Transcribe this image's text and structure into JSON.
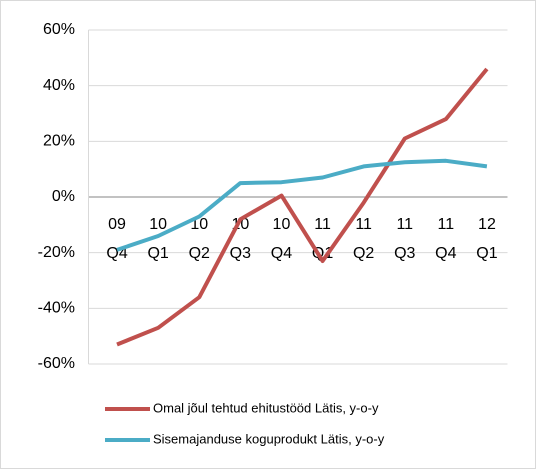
{
  "chart_data": {
    "type": "line",
    "categories": [
      "09\nQ4",
      "10\nQ1",
      "10\nQ2",
      "10\nQ3",
      "10\nQ4",
      "11\nQ1",
      "11\nQ2",
      "11\nQ3",
      "11\nQ4",
      "12\nQ1"
    ],
    "series": [
      {
        "name": "Omal jõul tehtud ehitustööd Lätis, y-o-y",
        "color": "#c0504d",
        "values": [
          -53,
          -47,
          -36,
          -8,
          0.5,
          -23,
          -2,
          21,
          28,
          46
        ]
      },
      {
        "name": "Sisemajanduse koguprodukt Lätis, y-o-y",
        "color": "#4bacc6",
        "values": [
          -19,
          -14,
          -7,
          5,
          5.3,
          7,
          11,
          12.5,
          13,
          11
        ]
      }
    ],
    "ylim": [
      -60,
      60
    ],
    "yticks": [
      {
        "value": -60,
        "label": "-60%"
      },
      {
        "value": -40,
        "label": "-40%"
      },
      {
        "value": -20,
        "label": "-20%"
      },
      {
        "value": 0,
        "label": "0%"
      },
      {
        "value": 20,
        "label": "20%"
      },
      {
        "value": 40,
        "label": "40%"
      },
      {
        "value": 60,
        "label": "60%"
      }
    ],
    "grid": true,
    "legend": "bottom"
  }
}
